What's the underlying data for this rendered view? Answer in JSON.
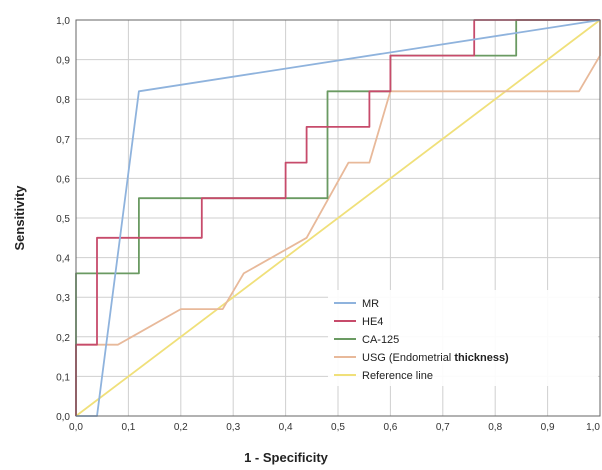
{
  "chart_data": {
    "type": "line",
    "title": "",
    "xlabel": "1 - Specificity",
    "ylabel": "Sensitivity",
    "xlim": [
      0,
      1
    ],
    "ylim": [
      0,
      1
    ],
    "grid": true,
    "legend_position": "bottom-right",
    "x_tick_labels": [
      "0,0",
      "0,1",
      "0,2",
      "0,3",
      "0,4",
      "0,5",
      "0,6",
      "0,7",
      "0,8",
      "0,9",
      "1,0"
    ],
    "y_tick_labels": [
      "0,0",
      "0,1",
      "0,2",
      "0,3",
      "0,4",
      "0,5",
      "0,6",
      "0,7",
      "0,8",
      "0,9",
      "1,0"
    ],
    "ticks": [
      0,
      0.1,
      0.2,
      0.3,
      0.4,
      0.5,
      0.6,
      0.7,
      0.8,
      0.9,
      1.0
    ],
    "series": [
      {
        "name": "MR",
        "color": "#8fb3dd",
        "points": [
          [
            0,
            0
          ],
          [
            0.04,
            0
          ],
          [
            0.12,
            0.82
          ],
          [
            1.0,
            1.0
          ]
        ]
      },
      {
        "name": "HE4",
        "color": "#c74b6b",
        "points": [
          [
            0,
            0
          ],
          [
            0,
            0.18
          ],
          [
            0.04,
            0.18
          ],
          [
            0.04,
            0.45
          ],
          [
            0.24,
            0.45
          ],
          [
            0.24,
            0.55
          ],
          [
            0.4,
            0.55
          ],
          [
            0.4,
            0.64
          ],
          [
            0.44,
            0.64
          ],
          [
            0.44,
            0.73
          ],
          [
            0.56,
            0.73
          ],
          [
            0.56,
            0.82
          ],
          [
            0.6,
            0.82
          ],
          [
            0.6,
            0.91
          ],
          [
            0.76,
            0.91
          ],
          [
            0.76,
            1.0
          ],
          [
            1.0,
            1.0
          ]
        ]
      },
      {
        "name": "CA-125",
        "color": "#6a9a62",
        "points": [
          [
            0,
            0
          ],
          [
            0,
            0.36
          ],
          [
            0.12,
            0.36
          ],
          [
            0.12,
            0.55
          ],
          [
            0.48,
            0.55
          ],
          [
            0.48,
            0.82
          ],
          [
            0.6,
            0.82
          ],
          [
            0.6,
            0.91
          ],
          [
            0.84,
            0.91
          ],
          [
            0.84,
            1.0
          ],
          [
            1.0,
            1.0
          ]
        ]
      },
      {
        "name": "USG (Endometrial thickness)",
        "color": "#e8b99a",
        "points": [
          [
            0,
            0
          ],
          [
            0,
            0.18
          ],
          [
            0.08,
            0.18
          ],
          [
            0.2,
            0.27
          ],
          [
            0.28,
            0.27
          ],
          [
            0.32,
            0.36
          ],
          [
            0.44,
            0.45
          ],
          [
            0.52,
            0.64
          ],
          [
            0.56,
            0.64
          ],
          [
            0.6,
            0.82
          ],
          [
            0.96,
            0.82
          ],
          [
            1.0,
            0.91
          ],
          [
            1.0,
            1.0
          ]
        ]
      },
      {
        "name": "Reference line",
        "color": "#f0e07a",
        "points": [
          [
            0,
            0
          ],
          [
            1.0,
            1.0
          ]
        ]
      }
    ]
  },
  "legend": [
    {
      "label": "MR",
      "color": "#8fb3dd"
    },
    {
      "label": "HE4",
      "color": "#c74b6b"
    },
    {
      "label": "CA-125",
      "color": "#6a9a62"
    },
    {
      "label_a": "USG (Endometrial ",
      "label_b": "thickness)",
      "color": "#e8b99a"
    },
    {
      "label": "Reference line",
      "color": "#f0e07a"
    }
  ]
}
